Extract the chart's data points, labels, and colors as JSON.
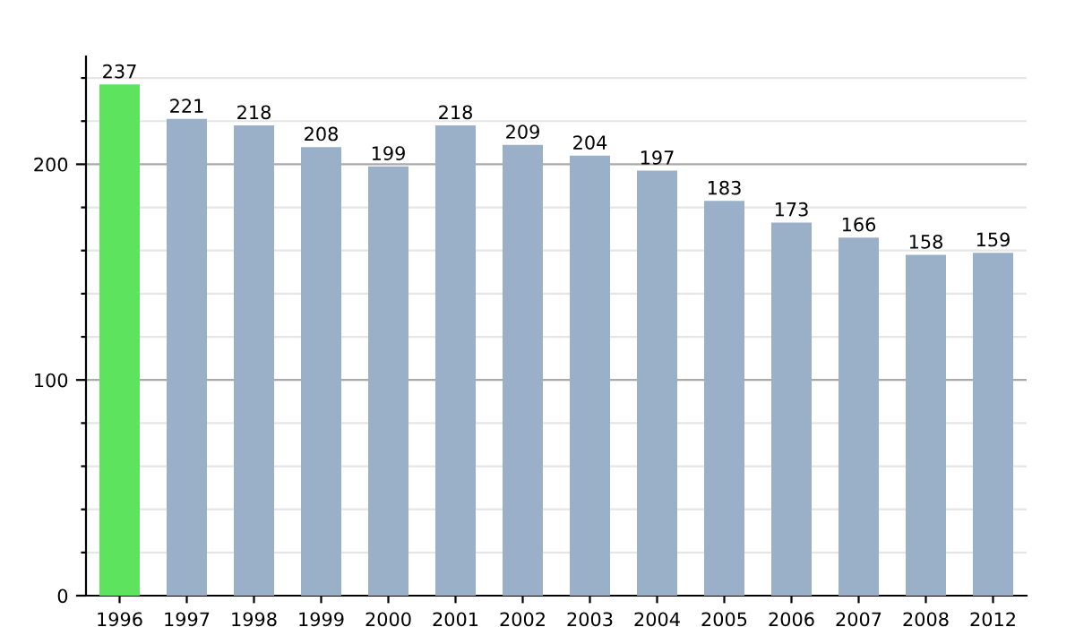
{
  "chart_data": {
    "type": "bar",
    "categories": [
      "1996",
      "1997",
      "1998",
      "1999",
      "2000",
      "2001",
      "2002",
      "2003",
      "2004",
      "2005",
      "2006",
      "2007",
      "2008",
      "2012"
    ],
    "values": [
      237,
      221,
      218,
      208,
      199,
      218,
      209,
      204,
      197,
      183,
      173,
      166,
      158,
      159
    ],
    "colors": [
      "#5ee35e",
      "#9ab0c8",
      "#9ab0c8",
      "#9ab0c8",
      "#9ab0c8",
      "#9ab0c8",
      "#9ab0c8",
      "#9ab0c8",
      "#9ab0c8",
      "#9ab0c8",
      "#9ab0c8",
      "#9ab0c8",
      "#9ab0c8",
      "#9ab0c8"
    ],
    "ylim": [
      0,
      250
    ],
    "yticks": [
      0,
      {
        "value": 20,
        "label": null
      },
      {
        "value": 40,
        "label": null
      },
      {
        "value": 60,
        "label": null
      },
      {
        "value": 80,
        "label": null
      },
      100,
      {
        "value": 120,
        "label": null
      },
      {
        "value": 140,
        "label": null
      },
      {
        "value": 160,
        "label": null
      },
      {
        "value": 180,
        "label": null
      },
      200,
      {
        "value": 220,
        "label": null
      },
      {
        "value": 240,
        "label": null
      }
    ],
    "grid": "y",
    "data_labels": true
  }
}
